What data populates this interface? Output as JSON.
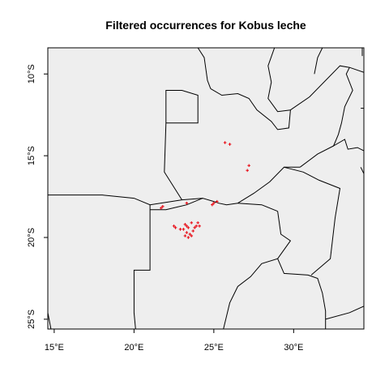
{
  "title": "Filtered occurrences for Kobus leche",
  "colors": {
    "land": "#EEEEEE",
    "border": "#000000",
    "points": "#E8000B",
    "frame": "#000000"
  },
  "chart_data": {
    "type": "scatter",
    "title": "Filtered occurrences for Kobus leche",
    "xlim": [
      14.6,
      34.4
    ],
    "ylim": [
      -25.6,
      -8.4
    ],
    "x_ticks": [
      {
        "value": 15,
        "label": "15°E"
      },
      {
        "value": 20,
        "label": "20°E"
      },
      {
        "value": 25,
        "label": "25°E"
      },
      {
        "value": 30,
        "label": "30°E"
      }
    ],
    "y_ticks": [
      {
        "value": -10,
        "label": "10°S"
      },
      {
        "value": -15,
        "label": "15°S"
      },
      {
        "value": -20,
        "label": "20°S"
      },
      {
        "value": -25,
        "label": "25°S"
      }
    ],
    "points": [
      [
        25.7,
        -14.2
      ],
      [
        26.0,
        -14.3
      ],
      [
        27.2,
        -15.6
      ],
      [
        27.1,
        -15.9
      ],
      [
        21.8,
        -18.1
      ],
      [
        21.7,
        -18.2
      ],
      [
        23.3,
        -17.9
      ],
      [
        25.0,
        -17.9
      ],
      [
        25.2,
        -17.8
      ],
      [
        24.9,
        -18.0
      ],
      [
        22.5,
        -19.3
      ],
      [
        22.6,
        -19.4
      ],
      [
        22.9,
        -19.5
      ],
      [
        23.2,
        -19.2
      ],
      [
        23.4,
        -19.4
      ],
      [
        23.6,
        -19.1
      ],
      [
        23.3,
        -19.7
      ],
      [
        23.5,
        -19.8
      ],
      [
        23.2,
        -19.9
      ],
      [
        23.7,
        -19.6
      ],
      [
        23.9,
        -19.3
      ],
      [
        24.0,
        -19.1
      ],
      [
        23.1,
        -19.5
      ],
      [
        23.6,
        -19.9
      ],
      [
        23.4,
        -20.0
      ],
      [
        23.8,
        -19.4
      ],
      [
        24.1,
        -19.3
      ],
      [
        23.3,
        -19.3
      ]
    ],
    "borders": [
      [
        [
          14.6,
          -17.4
        ],
        [
          18.0,
          -17.4
        ],
        [
          20.0,
          -17.6
        ],
        [
          21.0,
          -18.0
        ],
        [
          23.0,
          -17.7
        ],
        [
          24.3,
          -17.6
        ],
        [
          25.0,
          -17.8
        ],
        [
          25.3,
          -17.9
        ],
        [
          25.8,
          -18.0
        ],
        [
          26.5,
          -17.9
        ]
      ],
      [
        [
          26.5,
          -17.9
        ],
        [
          27.5,
          -17.3
        ],
        [
          28.5,
          -16.6
        ],
        [
          29.4,
          -15.7
        ],
        [
          30.4,
          -15.7
        ]
      ],
      [
        [
          26.5,
          -17.9
        ],
        [
          28.0,
          -18.0
        ],
        [
          29.0,
          -18.4
        ]
      ],
      [
        [
          29.4,
          -15.7
        ],
        [
          30.6,
          -16.0
        ],
        [
          31.6,
          -16.5
        ],
        [
          32.9,
          -17.0
        ],
        [
          32.6,
          -18.8
        ],
        [
          32.3,
          -21.3
        ],
        [
          31.1,
          -22.3
        ]
      ],
      [
        [
          29.0,
          -18.4
        ],
        [
          29.2,
          -19.8
        ],
        [
          29.8,
          -20.2
        ],
        [
          29.0,
          -21.3
        ],
        [
          28.0,
          -21.6
        ],
        [
          27.3,
          -22.4
        ],
        [
          26.5,
          -23.0
        ],
        [
          26.0,
          -24.0
        ],
        [
          25.6,
          -25.6
        ]
      ],
      [
        [
          29.0,
          -21.3
        ],
        [
          29.4,
          -22.2
        ],
        [
          30.9,
          -22.3
        ],
        [
          31.5,
          -22.5
        ],
        [
          31.8,
          -23.4
        ],
        [
          32.0,
          -24.5
        ],
        [
          32.0,
          -25.6
        ]
      ],
      [
        [
          32.0,
          -25.0
        ],
        [
          33.5,
          -24.6
        ],
        [
          34.4,
          -24.2
        ]
      ],
      [
        [
          21.0,
          -18.0
        ],
        [
          21.0,
          -22.0
        ],
        [
          20.0,
          -22.0
        ],
        [
          20.0,
          -24.6
        ],
        [
          20.1,
          -25.6
        ]
      ],
      [
        [
          24.3,
          -17.6
        ],
        [
          23.3,
          -18.0
        ],
        [
          22.0,
          -18.3
        ],
        [
          21.0,
          -18.3
        ]
      ],
      [
        [
          14.6,
          -24.6
        ],
        [
          14.8,
          -25.6
        ]
      ],
      [
        [
          22.0,
          -13.0
        ],
        [
          22.0,
          -11.0
        ],
        [
          23.0,
          -11.0
        ],
        [
          24.0,
          -11.3
        ],
        [
          24.0,
          -13.0
        ],
        [
          22.0,
          -13.0
        ],
        [
          21.9,
          -16.0
        ],
        [
          23.0,
          -17.7
        ]
      ],
      [
        [
          24.0,
          -8.4
        ],
        [
          24.4,
          -9.0
        ],
        [
          24.6,
          -10.4
        ],
        [
          24.8,
          -10.9
        ]
      ],
      [
        [
          24.8,
          -10.9
        ],
        [
          25.5,
          -11.3
        ],
        [
          26.5,
          -11.2
        ],
        [
          27.2,
          -11.5
        ],
        [
          27.7,
          -12.2
        ],
        [
          28.6,
          -12.9
        ],
        [
          29.0,
          -13.4
        ],
        [
          29.7,
          -13.3
        ],
        [
          29.8,
          -12.2
        ]
      ],
      [
        [
          28.8,
          -8.4
        ],
        [
          28.4,
          -9.5
        ],
        [
          28.6,
          -10.5
        ],
        [
          28.4,
          -11.5
        ],
        [
          29.0,
          -12.3
        ],
        [
          29.8,
          -12.2
        ]
      ],
      [
        [
          29.8,
          -12.2
        ],
        [
          31.0,
          -11.4
        ],
        [
          32.9,
          -9.5
        ],
        [
          33.5,
          -9.6
        ],
        [
          34.4,
          -9.9
        ]
      ],
      [
        [
          33.5,
          -9.6
        ],
        [
          33.3,
          -10.0
        ],
        [
          33.7,
          -11.0
        ],
        [
          33.2,
          -12.0
        ],
        [
          33.0,
          -13.0
        ],
        [
          32.8,
          -13.7
        ],
        [
          32.5,
          -14.4
        ],
        [
          33.2,
          -14.0
        ],
        [
          33.4,
          -14.6
        ],
        [
          34.0,
          -14.5
        ],
        [
          34.4,
          -14.7
        ]
      ],
      [
        [
          32.5,
          -14.4
        ],
        [
          31.5,
          -14.9
        ],
        [
          30.4,
          -15.7
        ]
      ],
      [
        [
          34.2,
          -12.1
        ],
        [
          34.4,
          -12.1
        ]
      ],
      [
        [
          34.2,
          -15.7
        ],
        [
          34.4,
          -16.1
        ]
      ],
      [
        [
          31.8,
          -8.4
        ],
        [
          31.5,
          -9.0
        ],
        [
          31.3,
          -10.0
        ]
      ],
      [
        [
          34.3,
          -8.4
        ],
        [
          34.3,
          -8.9
        ]
      ]
    ]
  }
}
